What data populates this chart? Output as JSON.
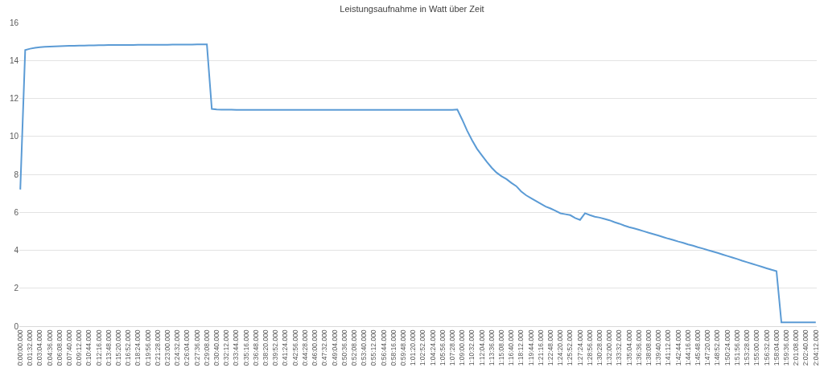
{
  "chart_data": {
    "type": "line",
    "title": "Leistungsaufnahme in Watt über Zeit",
    "categories": [
      "0:00:00.000",
      null,
      "0:01:32.000",
      null,
      "0:03:04.000",
      null,
      "0:04:36.000",
      null,
      "0:06:08.000",
      null,
      "0:07:40.000",
      null,
      "0:09:12.000",
      null,
      "0:10:44.000",
      null,
      "0:12:16.000",
      null,
      "0:13:48.000",
      null,
      "0:15:20.000",
      null,
      "0:16:52.000",
      null,
      "0:18:24.000",
      null,
      "0:19:56.000",
      null,
      "0:21:28.000",
      null,
      "0:23:00.000",
      null,
      "0:24:32.000",
      null,
      "0:26:04.000",
      null,
      "0:27:36.000",
      null,
      "0:29:08.000",
      null,
      "0:30:40.000",
      null,
      "0:32:12.000",
      null,
      "0:33:44.000",
      null,
      "0:35:16.000",
      null,
      "0:36:48.000",
      null,
      "0:38:20.000",
      null,
      "0:39:52.000",
      null,
      "0:41:24.000",
      null,
      "0:42:56.000",
      null,
      "0:44:28.000",
      null,
      "0:46:00.000",
      null,
      "0:47:32.000",
      null,
      "0:49:04.000",
      null,
      "0:50:36.000",
      null,
      "0:52:08.000",
      null,
      "0:53:40.000",
      null,
      "0:55:12.000",
      null,
      "0:56:44.000",
      null,
      "0:58:16.000",
      null,
      "0:59:48.000",
      null,
      "1:01:20.000",
      null,
      "1:02:52.000",
      null,
      "1:04:24.000",
      null,
      "1:05:56.000",
      null,
      "1:07:28.000",
      null,
      "1:09:00.000",
      null,
      "1:10:32.000",
      null,
      "1:12:04.000",
      null,
      "1:13:36.000",
      null,
      "1:15:08.000",
      null,
      "1:16:40.000",
      null,
      "1:18:12.000",
      null,
      "1:19:44.000",
      null,
      "1:21:16.000",
      null,
      "1:22:48.000",
      null,
      "1:24:20.000",
      null,
      "1:25:52.000",
      null,
      "1:27:24.000",
      null,
      "1:28:56.000",
      null,
      "1:30:28.000",
      null,
      "1:32:00.000",
      null,
      "1:33:32.000",
      null,
      "1:35:04.000",
      null,
      "1:36:36.000",
      null,
      "1:38:08.000",
      null,
      "1:39:40.000",
      null,
      "1:41:12.000",
      null,
      "1:42:44.000",
      null,
      "1:44:16.000",
      null,
      "1:45:48.000",
      null,
      "1:47:20.000",
      null,
      "1:48:52.000",
      null,
      "1:50:24.000",
      null,
      "1:51:56.000",
      null,
      "1:53:28.000",
      null,
      "1:55:00.000",
      null,
      "1:56:32.000",
      null,
      "1:58:04.000",
      null,
      "1:59:36.000",
      null,
      "2:01:08.000",
      null,
      "2:02:40.000",
      null,
      "2:04:12.000"
    ],
    "series": [
      {
        "color": "#5b9bd5",
        "values": [
          7.2,
          14.55,
          14.62,
          14.67,
          14.7,
          14.72,
          14.73,
          14.74,
          14.75,
          14.76,
          14.77,
          14.77,
          14.78,
          14.78,
          14.79,
          14.79,
          14.8,
          14.8,
          14.81,
          14.81,
          14.81,
          14.82,
          14.82,
          14.82,
          14.83,
          14.83,
          14.83,
          14.83,
          14.83,
          14.83,
          14.83,
          14.84,
          14.84,
          14.84,
          14.84,
          14.84,
          14.85,
          14.85,
          14.85,
          11.45,
          11.42,
          11.41,
          11.41,
          11.41,
          11.4,
          11.4,
          11.4,
          11.4,
          11.4,
          11.4,
          11.4,
          11.4,
          11.4,
          11.4,
          11.4,
          11.4,
          11.4,
          11.4,
          11.4,
          11.4,
          11.4,
          11.4,
          11.4,
          11.4,
          11.4,
          11.4,
          11.4,
          11.4,
          11.4,
          11.4,
          11.4,
          11.4,
          11.4,
          11.4,
          11.4,
          11.4,
          11.4,
          11.4,
          11.4,
          11.4,
          11.4,
          11.4,
          11.4,
          11.4,
          11.4,
          11.4,
          11.4,
          11.4,
          11.4,
          11.42,
          10.88,
          10.3,
          9.8,
          9.35,
          9.0,
          8.66,
          8.35,
          8.09,
          7.9,
          7.75,
          7.55,
          7.38,
          7.1,
          6.9,
          6.75,
          6.6,
          6.45,
          6.3,
          6.2,
          6.08,
          5.95,
          5.9,
          5.85,
          5.7,
          5.6,
          5.95,
          5.85,
          5.77,
          5.72,
          5.65,
          5.58,
          5.48,
          5.4,
          5.3,
          5.22,
          5.15,
          5.08,
          5.0,
          4.92,
          4.85,
          4.77,
          4.69,
          4.61,
          4.54,
          4.46,
          4.39,
          4.31,
          4.24,
          4.16,
          4.09,
          4.01,
          3.94,
          3.86,
          3.78,
          3.7,
          3.62,
          3.54,
          3.45,
          3.37,
          3.29,
          3.21,
          3.13,
          3.05,
          2.97,
          2.9,
          0.2,
          0.2,
          0.2,
          0.2,
          0.2,
          0.2,
          0.2,
          0.2
        ]
      }
    ],
    "ylim": [
      0,
      16
    ],
    "yticks": [
      0,
      2,
      4,
      6,
      8,
      10,
      12,
      14,
      16
    ],
    "grid": "y",
    "legend": false,
    "marker": "none",
    "line_style": "solid"
  }
}
